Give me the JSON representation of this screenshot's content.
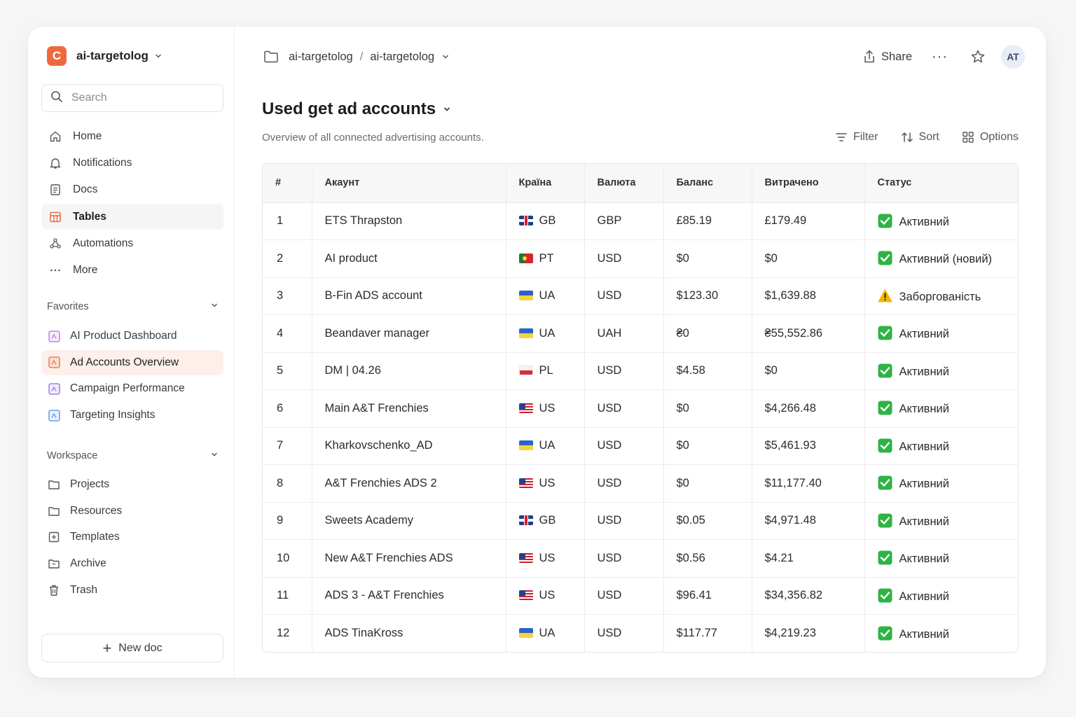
{
  "workspace": {
    "logo_letter": "C",
    "name": "ai-targetolog"
  },
  "search": {
    "placeholder": "Search"
  },
  "nav": [
    {
      "label": "Home",
      "icon": "home-icon"
    },
    {
      "label": "Notifications",
      "icon": "bell-icon"
    },
    {
      "label": "Docs",
      "icon": "doc-icon"
    },
    {
      "label": "Tables",
      "icon": "table-icon",
      "active": true
    },
    {
      "label": "Automations",
      "icon": "automation-icon"
    },
    {
      "label": "More",
      "icon": "more-icon"
    }
  ],
  "favorites": {
    "label": "Favorites",
    "items": [
      {
        "label": "AI Product Dashboard",
        "color": "#b174d8"
      },
      {
        "label": "Ad Accounts Overview",
        "color": "#ee6a3c",
        "active": true
      },
      {
        "label": "Campaign Performance",
        "color": "#8b6fe0"
      },
      {
        "label": "Targeting Insights",
        "color": "#4a8fe0"
      }
    ]
  },
  "workspace_section": {
    "label": "Workspace",
    "items": [
      {
        "label": "Projects",
        "icon": "folder-icon"
      },
      {
        "label": "Resources",
        "icon": "folder-icon"
      },
      {
        "label": "Templates",
        "icon": "template-icon"
      },
      {
        "label": "Archive",
        "icon": "archive-icon"
      },
      {
        "label": "Trash",
        "icon": "trash-icon"
      }
    ]
  },
  "new_doc": "New doc",
  "breadcrumb": {
    "first": "ai-targetolog",
    "separator": "/",
    "second": "ai-targetolog"
  },
  "topbar": {
    "share": "Share",
    "more": "···",
    "avatar": "AT"
  },
  "page": {
    "title": "Used get ad accounts",
    "subtitle": "Overview of all connected advertising accounts."
  },
  "toolbar": {
    "filter": "Filter",
    "sort": "Sort",
    "options": "Options"
  },
  "table": {
    "columns": [
      "#",
      "Акаунт",
      "Країна",
      "Валюта",
      "Баланс",
      "Витрачено",
      "Статус"
    ],
    "rows": [
      {
        "n": "1",
        "account": "ETS Thrapston",
        "country": "GB",
        "currency": "GBP",
        "balance": "£85.19",
        "spent": "£179.49",
        "status": "Активний",
        "status_kind": "ok"
      },
      {
        "n": "2",
        "account": "AI product",
        "country": "PT",
        "currency": "USD",
        "balance": "$0",
        "spent": "$0",
        "status": "Активний (новий)",
        "status_kind": "ok"
      },
      {
        "n": "3",
        "account": "B-Fin ADS account",
        "country": "UA",
        "currency": "USD",
        "balance": "$123.30",
        "spent": "$1,639.88",
        "status": "Заборгованість",
        "status_kind": "warn"
      },
      {
        "n": "4",
        "account": "Beandaver manager",
        "country": "UA",
        "currency": "UAH",
        "balance": "₴0",
        "spent": "₴55,552.86",
        "status": "Активний",
        "status_kind": "ok"
      },
      {
        "n": "5",
        "account": "DM | 04.26",
        "country": "PL",
        "currency": "USD",
        "balance": "$4.58",
        "spent": "$0",
        "status": "Активний",
        "status_kind": "ok"
      },
      {
        "n": "6",
        "account": "Main A&T Frenchies",
        "country": "US",
        "currency": "USD",
        "balance": "$0",
        "spent": "$4,266.48",
        "status": "Активний",
        "status_kind": "ok"
      },
      {
        "n": "7",
        "account": "Kharkovschenko_AD",
        "country": "UA",
        "currency": "USD",
        "balance": "$0",
        "spent": "$5,461.93",
        "status": "Активний",
        "status_kind": "ok"
      },
      {
        "n": "8",
        "account": "A&T Frenchies ADS 2",
        "country": "US",
        "currency": "USD",
        "balance": "$0",
        "spent": "$11,177.40",
        "status": "Активний",
        "status_kind": "ok"
      },
      {
        "n": "9",
        "account": "Sweets Academy",
        "country": "GB",
        "currency": "USD",
        "balance": "$0.05",
        "spent": "$4,971.48",
        "status": "Активний",
        "status_kind": "ok"
      },
      {
        "n": "10",
        "account": "New A&T Frenchies ADS",
        "country": "US",
        "currency": "USD",
        "balance": "$0.56",
        "spent": "$4.21",
        "status": "Активний",
        "status_kind": "ok"
      },
      {
        "n": "11",
        "account": "ADS 3 - A&T Frenchies",
        "country": "US",
        "currency": "USD",
        "balance": "$96.41",
        "spent": "$34,356.82",
        "status": "Активний",
        "status_kind": "ok"
      },
      {
        "n": "12",
        "account": "ADS TinaKross",
        "country": "UA",
        "currency": "USD",
        "balance": "$117.77",
        "spent": "$4,219.23",
        "status": "Активний",
        "status_kind": "ok"
      }
    ]
  },
  "colors": {
    "accent": "#ee6a3c",
    "ok": "#2fb344",
    "warn": "#f5b400"
  }
}
